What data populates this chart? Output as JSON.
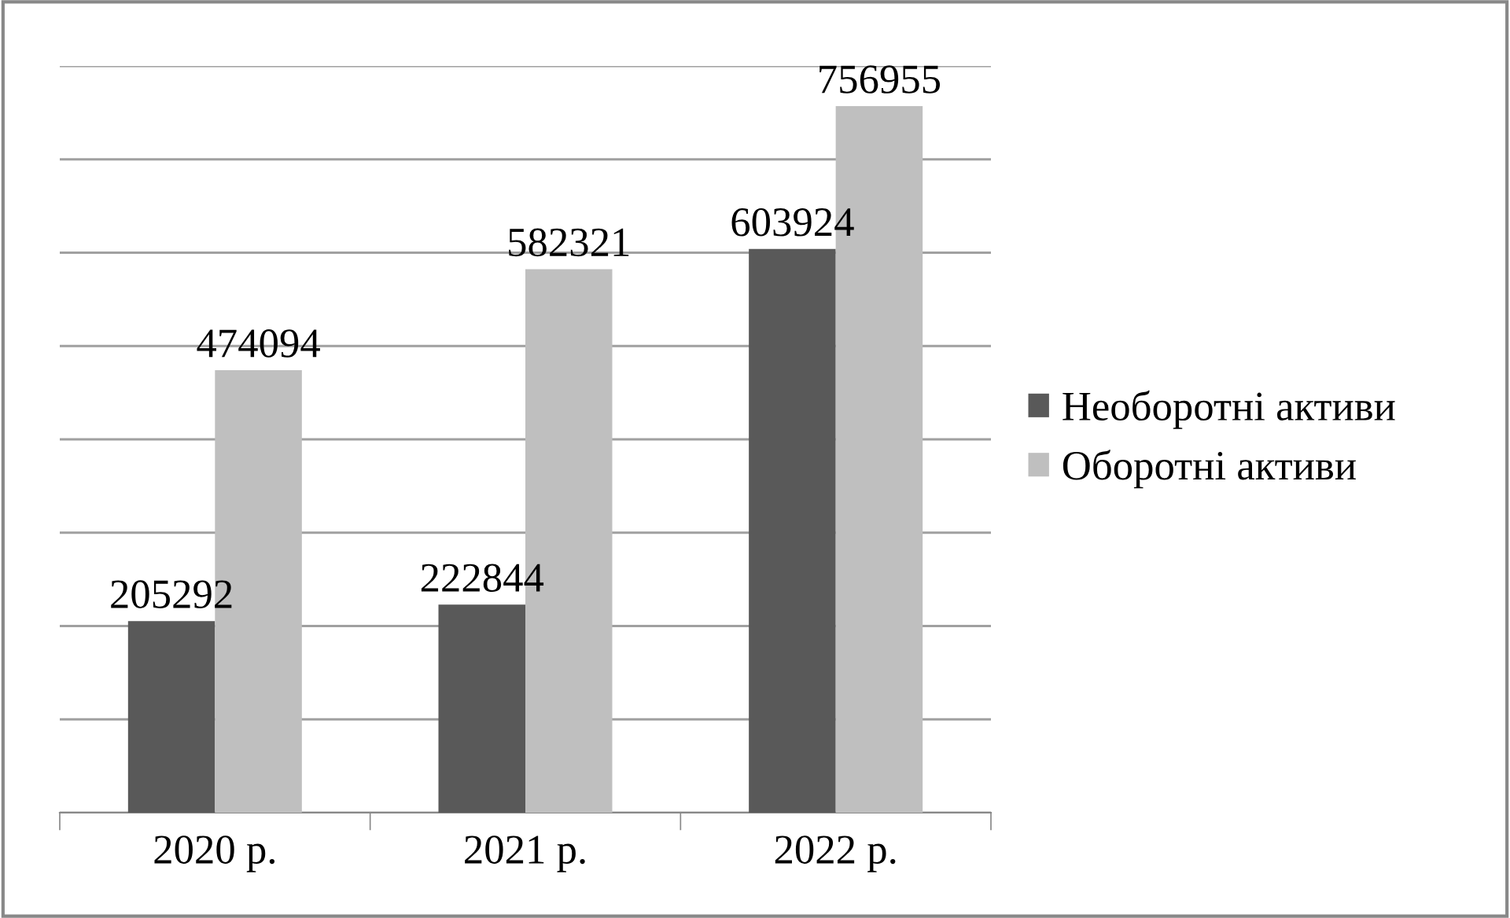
{
  "chart_data": {
    "type": "bar",
    "categories": [
      "2020 р.",
      "2021 р.",
      "2022 р."
    ],
    "series": [
      {
        "name": "Необоротні активи",
        "color": "#595959",
        "values": [
          205292,
          222844,
          603924
        ]
      },
      {
        "name": "Оборотні активи",
        "color": "#bfbfbf",
        "values": [
          474094,
          582321,
          756955
        ]
      }
    ],
    "ylim": [
      0,
      800000
    ],
    "yticks": [
      {
        "value": 0,
        "label": null
      },
      {
        "value": 100000,
        "label": null
      },
      {
        "value": 200000,
        "label": null
      },
      {
        "value": 300000,
        "label": null
      },
      {
        "value": 400000,
        "label": null
      },
      {
        "value": 500000,
        "label": null
      },
      {
        "value": 600000,
        "label": null
      },
      {
        "value": 700000,
        "label": null
      },
      {
        "value": 800000,
        "label": null
      }
    ],
    "grid": "y",
    "legend": "right",
    "data_labels": true
  }
}
